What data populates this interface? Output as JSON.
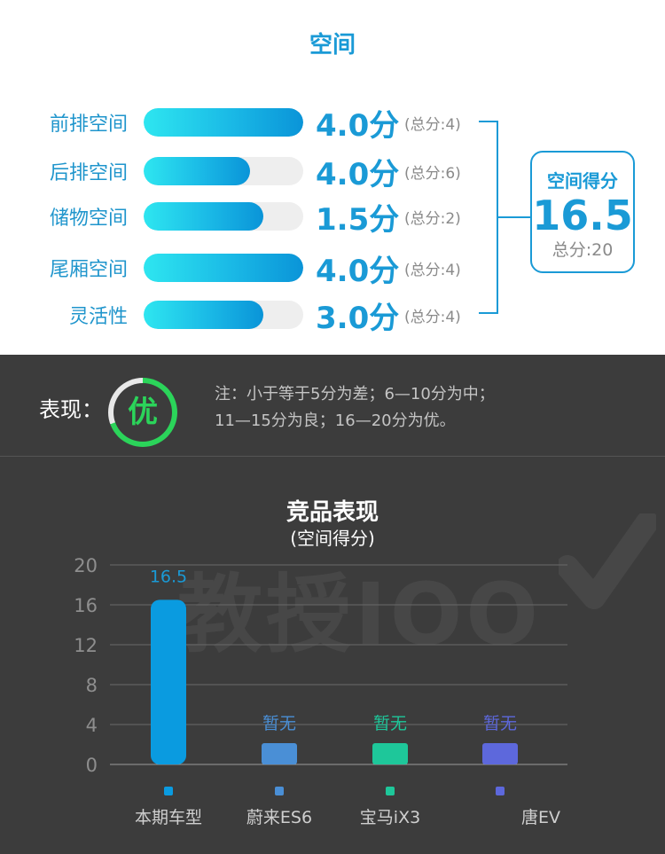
{
  "space": {
    "title": "空间",
    "rows": [
      {
        "label": "前排空间",
        "score": 4.0,
        "score_text": "4.0分",
        "max": 4,
        "total_text": "(总分:4)"
      },
      {
        "label": "后排空间",
        "score": 4.0,
        "score_text": "4.0分",
        "max": 6,
        "total_text": "(总分:6)"
      },
      {
        "label": "储物空间",
        "score": 1.5,
        "score_text": "1.5分",
        "max": 2,
        "total_text": "(总分:2)"
      },
      {
        "label": "尾厢空间",
        "score": 4.0,
        "score_text": "4.0分",
        "max": 4,
        "total_text": "(总分:4)"
      },
      {
        "label": "灵活性",
        "score": 3.0,
        "score_text": "3.0分",
        "max": 4,
        "total_text": "(总分:4)"
      }
    ],
    "summary": {
      "title": "空间得分",
      "value": "16.5",
      "total": "总分:20"
    }
  },
  "performance": {
    "label": "表现：",
    "grade": "优",
    "note_line1": "注：小于等于5分为差；6—10分为中；",
    "note_line2": "11—15分为良；16—20分为优。",
    "colors": {
      "grade": "#2bd45a"
    }
  },
  "watermark": "教授IOO",
  "chart_data": {
    "type": "bar",
    "title": "竞品表现",
    "subtitle": "(空间得分)",
    "categories": [
      "本期车型",
      "蔚来ES6",
      "宝马iX3",
      "唐EV"
    ],
    "values": [
      16.5,
      null,
      null,
      null
    ],
    "data_labels": [
      "16.5",
      "暂无",
      "暂无",
      "暂无"
    ],
    "colors": [
      "#0a9be0",
      "#4a8fd6",
      "#1ec79a",
      "#5d68dc"
    ],
    "label_colors": [
      "#1a9ad6",
      "#4a8fd6",
      "#1ec79a",
      "#5d68dc"
    ],
    "ylim": [
      0,
      20
    ],
    "yticks": [
      0,
      4,
      8,
      12,
      16,
      20
    ],
    "grid": true
  }
}
